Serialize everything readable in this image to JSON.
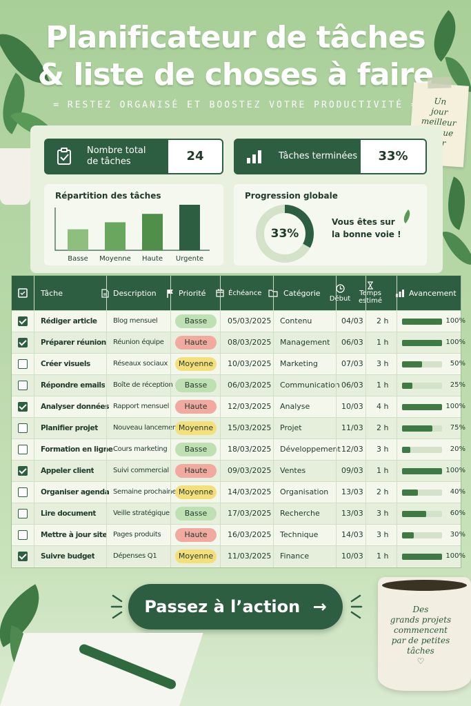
{
  "header": {
    "title_line1": "Planificateur de tâches",
    "title_line2": "& liste de choses à faire",
    "subtitle": "RESTEZ ORGANISÉ ET BOOSTEZ VOTRE PRODUCTIVITÉ"
  },
  "sticky_note": {
    "lines": [
      "Un",
      "jour",
      "meilleur",
      "chaque jour",
      "♡"
    ]
  },
  "stats": {
    "total_label_1": "Nombre total",
    "total_label_2": "de tâches",
    "total_value": "24",
    "done_label": "Tâches terminées",
    "done_value": "33%"
  },
  "distribution": {
    "title": "Répartition des tâches",
    "chart_data": {
      "type": "bar",
      "categories": [
        "Basse",
        "Moyenne",
        "Haute",
        "Urgente"
      ],
      "values": [
        30,
        40,
        52,
        65
      ],
      "colors": [
        "#8fbf7f",
        "#6aa75e",
        "#4f8f4a",
        "#2e5e41"
      ]
    }
  },
  "progress": {
    "title": "Progression globale",
    "value": "33%",
    "fraction": 0.33,
    "message_1": "Vous êtes sur",
    "message_2": "la bonne voie !"
  },
  "table": {
    "headers": {
      "task": "Tâche",
      "description": "Description",
      "priority": "Priorité",
      "due": "Échéance",
      "category": "Catégorie",
      "start": "Début",
      "estimate_1": "Temps",
      "estimate_2": "estimé",
      "progress": "Avancement"
    },
    "rows": [
      {
        "done": true,
        "task": "Rédiger article",
        "description": "Blog mensuel",
        "priority": "Basse",
        "due": "05/03/2025",
        "category": "Contenu",
        "start": "04/03",
        "estimate": "2 h",
        "progress": 1.0,
        "progress_label": "100%"
      },
      {
        "done": true,
        "task": "Préparer réunion",
        "description": "Réunion équipe",
        "priority": "Haute",
        "due": "08/03/2025",
        "category": "Management",
        "start": "06/03",
        "estimate": "1 h",
        "progress": 1.0,
        "progress_label": "100%"
      },
      {
        "done": false,
        "task": "Créer visuels",
        "description": "Réseaux sociaux",
        "priority": "Moyenne",
        "due": "10/03/2025",
        "category": "Marketing",
        "start": "07/03",
        "estimate": "3 h",
        "progress": 0.5,
        "progress_label": "50%"
      },
      {
        "done": false,
        "task": "Répondre emails",
        "description": "Boîte de réception",
        "priority": "Basse",
        "due": "06/03/2025",
        "category": "Communication",
        "start": "06/03",
        "estimate": "1 h",
        "progress": 0.25,
        "progress_label": "25%"
      },
      {
        "done": true,
        "task": "Analyser données",
        "description": "Rapport mensuel",
        "priority": "Haute",
        "due": "12/03/2025",
        "category": "Analyse",
        "start": "10/03",
        "estimate": "4 h",
        "progress": 1.0,
        "progress_label": "100%"
      },
      {
        "done": false,
        "task": "Planifier projet",
        "description": "Nouveau lancement",
        "priority": "Moyenne",
        "due": "15/03/2025",
        "category": "Projet",
        "start": "11/03",
        "estimate": "2 h",
        "progress": 0.75,
        "progress_label": "75%"
      },
      {
        "done": false,
        "task": "Formation en ligne",
        "description": "Cours marketing",
        "priority": "Basse",
        "due": "18/03/2025",
        "category": "Développement",
        "start": "12/03",
        "estimate": "3 h",
        "progress": 0.2,
        "progress_label": "20%"
      },
      {
        "done": true,
        "task": "Appeler client",
        "description": "Suivi commercial",
        "priority": "Haute",
        "due": "09/03/2025",
        "category": "Ventes",
        "start": "09/03",
        "estimate": "1 h",
        "progress": 1.0,
        "progress_label": "100%"
      },
      {
        "done": false,
        "task": "Organiser agenda",
        "description": "Semaine prochaine",
        "priority": "Moyenne",
        "due": "14/03/2025",
        "category": "Organisation",
        "start": "13/03",
        "estimate": "2 h",
        "progress": 0.4,
        "progress_label": "40%"
      },
      {
        "done": false,
        "task": "Lire document",
        "description": "Veille stratégique",
        "priority": "Basse",
        "due": "17/03/2025",
        "category": "Recherche",
        "start": "13/03",
        "estimate": "3 h",
        "progress": 0.6,
        "progress_label": "60%"
      },
      {
        "done": false,
        "task": "Mettre à jour site",
        "description": "Pages produits",
        "priority": "Haute",
        "due": "16/03/2025",
        "category": "Technique",
        "start": "14/03",
        "estimate": "3 h",
        "progress": 0.3,
        "progress_label": "30%"
      },
      {
        "done": true,
        "task": "Suivre budget",
        "description": "Dépenses Q1",
        "priority": "Moyenne",
        "due": "11/03/2025",
        "category": "Finance",
        "start": "10/03",
        "estimate": "1 h",
        "progress": 1.0,
        "progress_label": "100%"
      }
    ]
  },
  "priority_colors": {
    "Basse": "#bfe0b3",
    "Haute": "#f2a9a0",
    "Moyenne": "#f5df7a"
  },
  "cta": {
    "label": "Passez à l’action",
    "arrow": "→"
  },
  "mug": {
    "lines": [
      "Des",
      "grands projets",
      "commencent",
      "par de petites",
      "tâches",
      "♡"
    ]
  },
  "icons": [
    "clipboard-check-icon",
    "bar-chart-icon",
    "checkbox-icon",
    "document-icon",
    "flag-icon",
    "calendar-icon",
    "folder-icon",
    "clock-icon",
    "hourglass-icon",
    "progress-bars-icon",
    "arrow-right-icon",
    "leaf-icon"
  ]
}
